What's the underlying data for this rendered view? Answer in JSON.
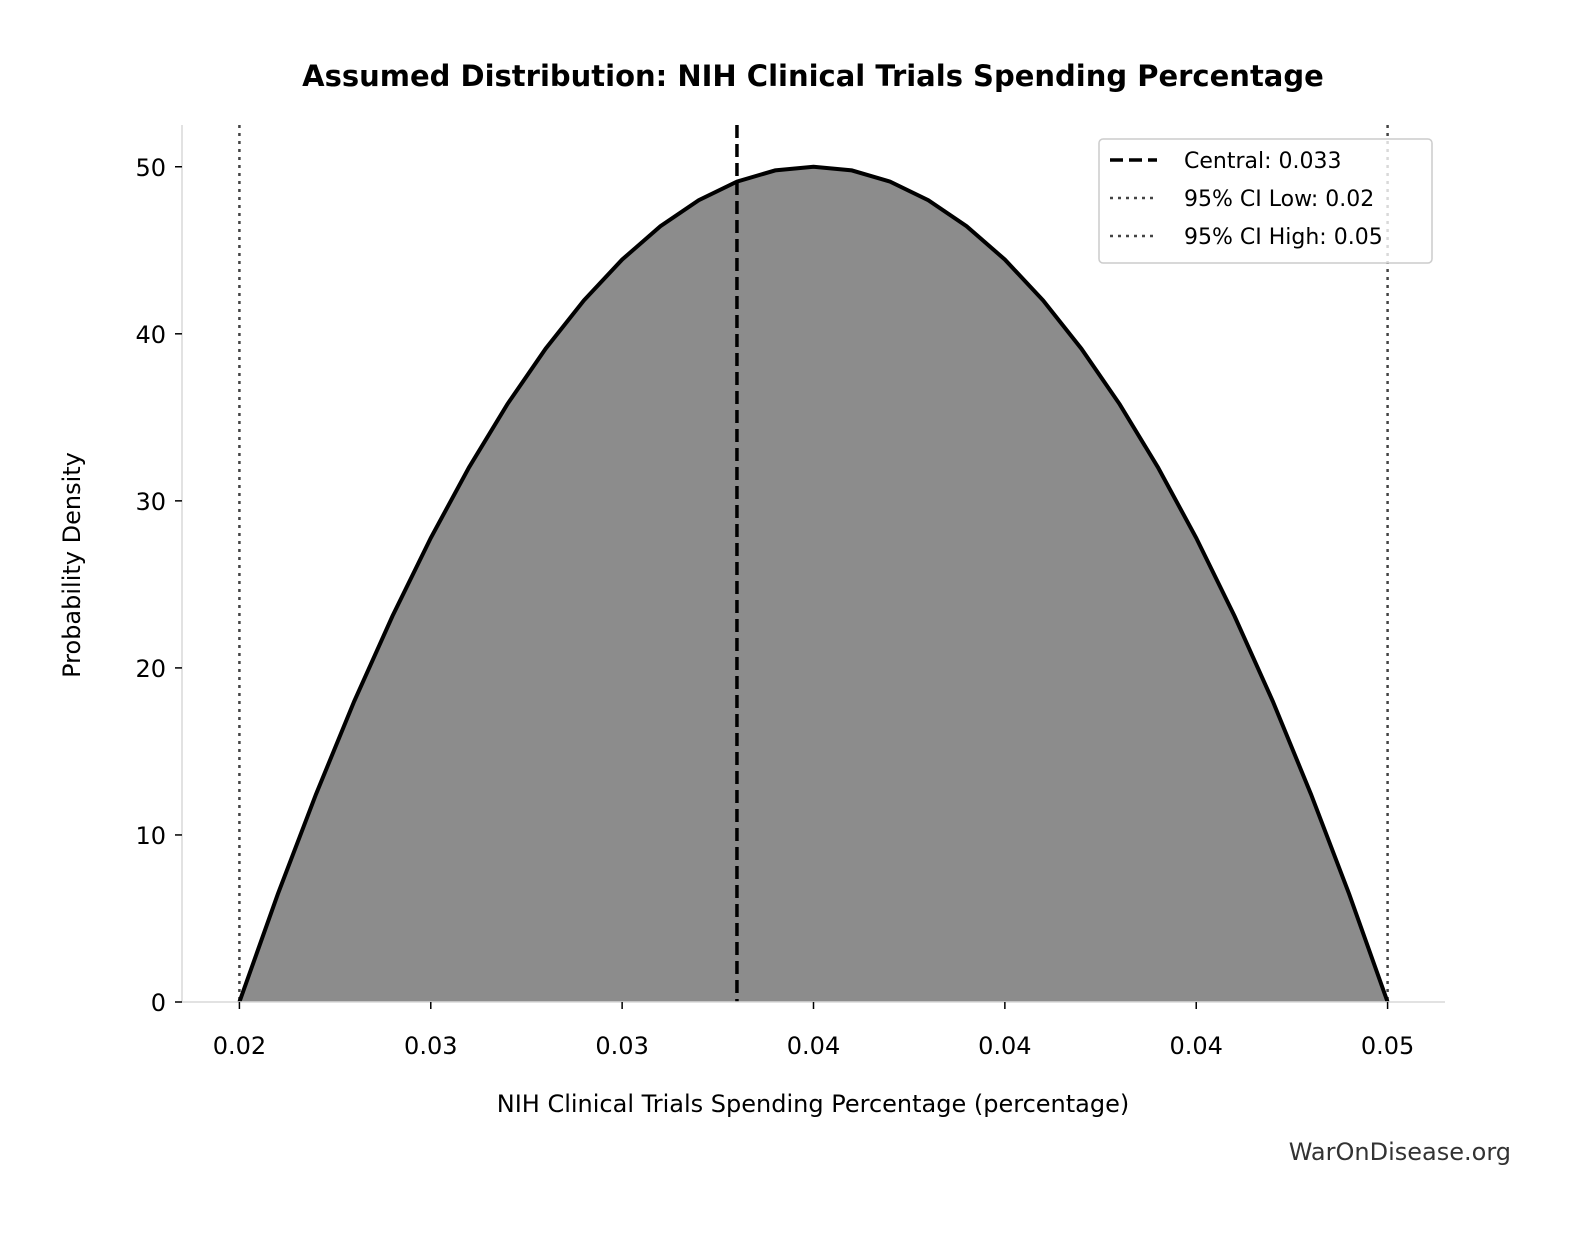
{
  "chart_data": {
    "type": "area",
    "title": "Assumed Distribution: NIH Clinical Trials Spending Percentage",
    "xlabel": "NIH Clinical Trials Spending Percentage (percentage)",
    "ylabel": "Probability Density",
    "xlim": [
      0.0185,
      0.0515
    ],
    "ylim": [
      0,
      52.5
    ],
    "xticks": [
      0.02,
      0.025,
      0.03,
      0.035,
      0.04,
      0.045,
      0.05
    ],
    "xtick_labels": [
      "0.02",
      "0.03",
      "0.03",
      "0.04",
      "0.04",
      "0.04",
      "0.05"
    ],
    "yticks": [
      0,
      10,
      20,
      30,
      40,
      50
    ],
    "ytick_labels": [
      "0",
      "10",
      "20",
      "30",
      "40",
      "50"
    ],
    "grid": false,
    "fill_color": "#8c8c8c",
    "line_color": "#000000",
    "series": [
      {
        "x": [
          0.02,
          0.021,
          0.022,
          0.023,
          0.024,
          0.025,
          0.026,
          0.027,
          0.028,
          0.029,
          0.03,
          0.031,
          0.032,
          0.033,
          0.034,
          0.035,
          0.036,
          0.037,
          0.038,
          0.039,
          0.04,
          0.041,
          0.042,
          0.043,
          0.044,
          0.045,
          0.046,
          0.047,
          0.048,
          0.049,
          0.05
        ],
        "y": [
          0,
          6.44,
          12.44,
          18,
          23.11,
          27.78,
          32,
          35.78,
          39.11,
          42,
          44.44,
          46.44,
          48,
          49.11,
          49.78,
          50,
          49.78,
          49.11,
          48,
          46.44,
          44.44,
          42,
          39.11,
          35.78,
          32,
          27.78,
          23.11,
          18,
          12.44,
          6.44,
          0
        ]
      }
    ],
    "vlines": [
      {
        "x": 0.033,
        "style": "dashed",
        "color": "#000000",
        "label": "Central: 0.033"
      },
      {
        "x": 0.02,
        "style": "dotted",
        "color": "#444444",
        "label": "95% CI Low: 0.02"
      },
      {
        "x": 0.05,
        "style": "dotted",
        "color": "#444444",
        "label": "95% CI High: 0.05"
      }
    ],
    "legend_placement": "top-right",
    "watermark": "WarOnDisease.org"
  }
}
